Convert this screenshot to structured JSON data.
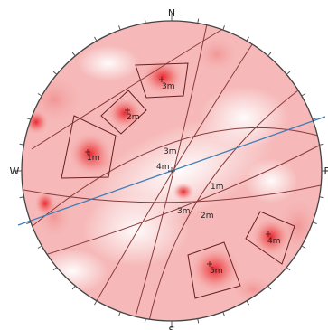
{
  "stereonet": {
    "compass": {
      "north": "N",
      "south": "S",
      "east": "E",
      "west": "W"
    },
    "colors": {
      "outline": "#444444",
      "tick": "#555555",
      "contour_low": "#ffffff",
      "contour_high": "#e8202a",
      "set_window": "#6b1f1f",
      "great_circle": "#8a3a3a",
      "trend_line": "#3f7fb8"
    },
    "set_windows": [
      {
        "label": "3m"
      },
      {
        "label": "2m"
      },
      {
        "label": "1m"
      },
      {
        "label": "4m"
      },
      {
        "label": "5m"
      }
    ],
    "plane_labels": [
      {
        "label": "3m"
      },
      {
        "label": "4m"
      },
      {
        "label": "1m"
      },
      {
        "label": "3m"
      },
      {
        "label": "2m"
      }
    ]
  }
}
